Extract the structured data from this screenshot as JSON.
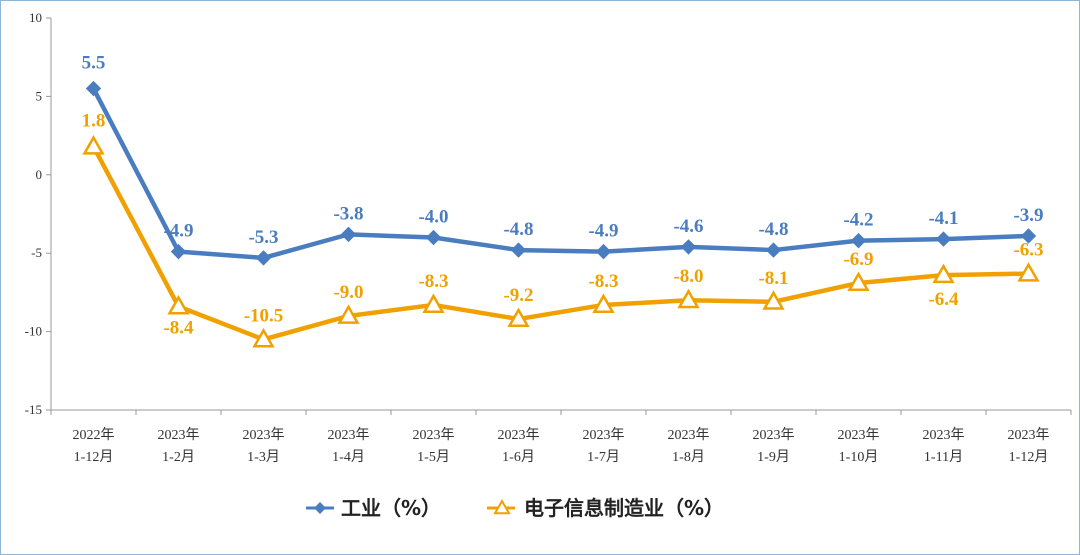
{
  "chart_data": {
    "type": "line",
    "categories": [
      [
        "2022年",
        "1-12月"
      ],
      [
        "2023年",
        "1-2月"
      ],
      [
        "2023年",
        "1-3月"
      ],
      [
        "2023年",
        "1-4月"
      ],
      [
        "2023年",
        "1-5月"
      ],
      [
        "2023年",
        "1-6月"
      ],
      [
        "2023年",
        "1-7月"
      ],
      [
        "2023年",
        "1-8月"
      ],
      [
        "2023年",
        "1-9月"
      ],
      [
        "2023年",
        "1-10月"
      ],
      [
        "2023年",
        "1-11月"
      ],
      [
        "2023年",
        "1-12月"
      ]
    ],
    "ylim": [
      -15,
      10
    ],
    "yticks": [
      10,
      5,
      0,
      -5,
      -10,
      -15
    ],
    "grid": false,
    "legend_position": "bottom-center",
    "series": [
      {
        "name": "工业（%）",
        "marker": "diamond",
        "color": "#4a7dbf",
        "values": [
          5.5,
          -4.9,
          -5.3,
          -3.8,
          -4.0,
          -4.8,
          -4.9,
          -4.6,
          -4.8,
          -4.2,
          -4.1,
          -3.9
        ],
        "labels": [
          "5.5",
          "-4.9",
          "-5.3",
          "-3.8",
          "-4.0",
          "-4.8",
          "-4.9",
          "-4.6",
          "-4.8",
          "-4.2",
          "-4.1",
          "-3.9"
        ]
      },
      {
        "name": "电子信息制造业（%）",
        "marker": "triangle",
        "color": "#f0a100",
        "values": [
          1.8,
          -8.4,
          -10.5,
          -9.0,
          -8.3,
          -9.2,
          -8.3,
          -8.0,
          -8.1,
          -6.9,
          -6.4,
          -6.3
        ],
        "labels": [
          "1.8",
          "-8.4",
          "-10.5",
          "-9.0",
          "-8.3",
          "-9.2",
          "-8.3",
          "-8.0",
          "-8.1",
          "-6.9",
          "-6.4",
          "-6.3"
        ]
      }
    ]
  }
}
